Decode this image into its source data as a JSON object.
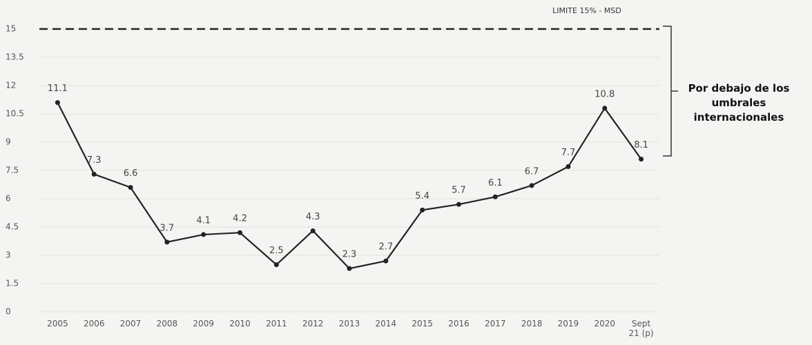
{
  "chart_data": {
    "type": "line",
    "categories": [
      "2005",
      "2006",
      "2007",
      "2008",
      "2009",
      "2010",
      "2011",
      "2012",
      "2013",
      "2014",
      "2015",
      "2016",
      "2017",
      "2018",
      "2019",
      "2020",
      "Sept 21 (p)"
    ],
    "values": [
      11.1,
      7.3,
      6.6,
      3.7,
      4.1,
      4.2,
      2.5,
      4.3,
      2.3,
      2.7,
      5.4,
      5.7,
      6.1,
      6.7,
      7.7,
      10.8,
      8.1
    ],
    "color": "#222222",
    "ylim": [
      0,
      15
    ],
    "yticks": [
      0,
      1.5,
      3,
      4.5,
      6,
      7.5,
      9,
      10.5,
      12,
      13.5,
      15
    ],
    "grid": true,
    "reference_line": {
      "value": 15,
      "label": "LIMITE 15% - MSD"
    },
    "annotation": "Por debajo de los umbrales internacionales"
  }
}
